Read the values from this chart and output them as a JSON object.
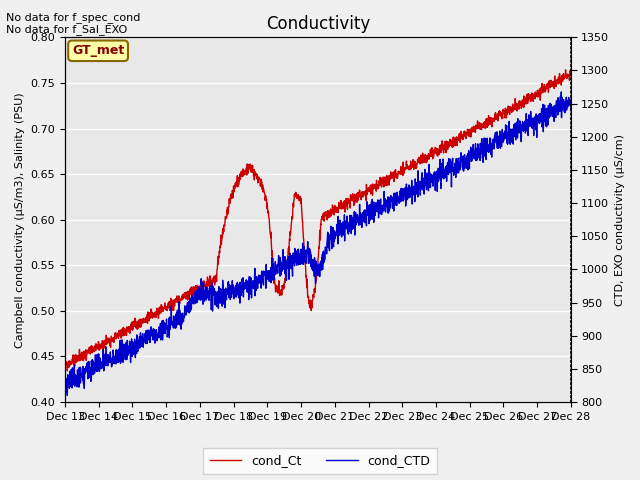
{
  "title": "Conductivity",
  "ylabel_left": "Campbell conductivity (μS/m3), Salinity (PSU)",
  "ylabel_right": "CTD, EXO conductivity (μS/cm)",
  "ylim_left": [
    0.4,
    0.8
  ],
  "ylim_right": [
    800,
    1350
  ],
  "yticks_left": [
    0.4,
    0.45,
    0.5,
    0.55,
    0.6,
    0.65,
    0.7,
    0.75,
    0.8
  ],
  "yticks_right": [
    800,
    850,
    900,
    950,
    1000,
    1050,
    1100,
    1150,
    1200,
    1250,
    1300,
    1350
  ],
  "xlim": [
    0,
    15
  ],
  "xtick_positions": [
    0,
    1,
    2,
    3,
    4,
    5,
    6,
    7,
    8,
    9,
    10,
    11,
    12,
    13,
    14,
    15
  ],
  "xtick_labels": [
    "Dec 13",
    "Dec 14",
    "Dec 15",
    "Dec 16",
    "Dec 17",
    "Dec 18",
    "Dec 19",
    "Dec 20",
    "Dec 21",
    "Dec 22",
    "Dec 23",
    "Dec 24",
    "Dec 25",
    "Dec 26",
    "Dec 27",
    "Dec 28"
  ],
  "no_data_text1": "No data for f_spec_cond",
  "no_data_text2": "No data for f_Sal_EXO",
  "legend_label1": "cond_Ct",
  "legend_label2": "cond_CTD",
  "color_ct": "#cc0000",
  "color_ctd": "#0000cc",
  "line_width": 1.0,
  "bg_color": "#e8e8e8",
  "grid_color": "#ffffff",
  "fig_bg_color": "#f0f0f0",
  "gt_met_bg": "#ffffaa",
  "gt_met_border": "#886600",
  "gt_met_text": "#880000",
  "title_fontsize": 12,
  "label_fontsize": 8,
  "tick_fontsize": 8
}
